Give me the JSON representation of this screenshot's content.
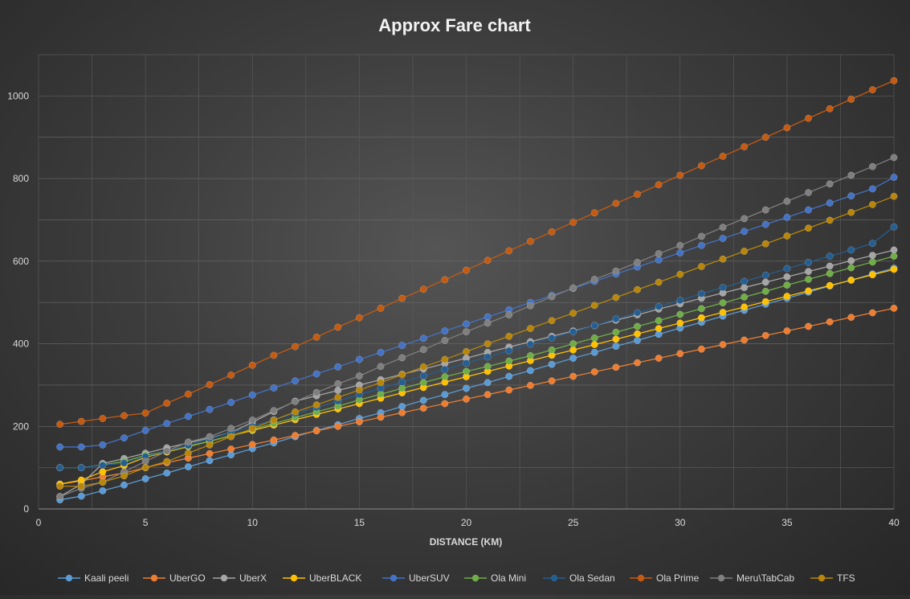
{
  "chart_data": {
    "type": "line",
    "title": "Approx Fare chart",
    "xlabel": "DISTANCE (KM)",
    "ylabel": "",
    "xlim": [
      0,
      40
    ],
    "ylim": [
      0,
      1100
    ],
    "x_ticks": [
      0,
      5,
      10,
      15,
      20,
      25,
      30,
      35,
      40
    ],
    "y_ticks": [
      0,
      200,
      400,
      600,
      800,
      1000
    ],
    "grid": true,
    "legend_position": "bottom",
    "x": [
      1,
      2,
      3,
      4,
      5,
      6,
      7,
      8,
      9,
      10,
      11,
      12,
      13,
      14,
      15,
      16,
      17,
      18,
      19,
      20,
      21,
      22,
      23,
      24,
      25,
      26,
      27,
      28,
      29,
      30,
      31,
      32,
      33,
      34,
      35,
      36,
      37,
      38,
      39,
      40
    ],
    "series": [
      {
        "name": "Kaali peeli",
        "color": "#5b9bd5",
        "values": [
          22,
          31,
          44,
          58,
          73,
          87,
          102,
          117,
          131,
          146,
          160,
          175,
          190,
          204,
          219,
          233,
          248,
          263,
          277,
          292,
          306,
          321,
          335,
          350,
          365,
          379,
          394,
          408,
          423,
          438,
          452,
          467,
          481,
          496,
          510,
          525,
          540,
          554,
          569,
          583
        ]
      },
      {
        "name": "UberGO",
        "color": "#ed7d31",
        "values": [
          60,
          68,
          78,
          87,
          100,
          112,
          123,
          134,
          145,
          156,
          167,
          178,
          189,
          200,
          211,
          222,
          233,
          244,
          255,
          266,
          277,
          288,
          299,
          310,
          321,
          332,
          343,
          354,
          365,
          376,
          387,
          398,
          409,
          420,
          431,
          442,
          453,
          464,
          475,
          486
        ]
      },
      {
        "name": "UberX",
        "color": "#a5a5a5",
        "values": [
          30,
          60,
          110,
          122,
          135,
          148,
          160,
          172,
          185,
          210,
          236,
          261,
          274,
          287,
          300,
          313,
          326,
          339,
          352,
          365,
          379,
          392,
          405,
          418,
          431,
          444,
          457,
          470,
          484,
          497,
          510,
          523,
          536,
          549,
          562,
          575,
          588,
          601,
          614,
          627
        ]
      },
      {
        "name": "UberBLACK",
        "color": "#ffc000",
        "values": [
          60,
          70,
          90,
          105,
          125,
          138,
          151,
          164,
          177,
          190,
          203,
          216,
          229,
          242,
          255,
          268,
          281,
          294,
          307,
          320,
          333,
          346,
          359,
          372,
          385,
          398,
          411,
          424,
          437,
          450,
          463,
          476,
          489,
          502,
          515,
          528,
          541,
          554,
          567,
          580
        ]
      },
      {
        "name": "UberSUV",
        "color": "#4472c4",
        "values": [
          150,
          150,
          155,
          172,
          190,
          207,
          224,
          241,
          258,
          276,
          293,
          310,
          327,
          344,
          362,
          379,
          396,
          413,
          431,
          448,
          465,
          482,
          500,
          517,
          534,
          551,
          569,
          586,
          603,
          620,
          638,
          655,
          672,
          689,
          706,
          724,
          741,
          758,
          775,
          803
        ]
      },
      {
        "name": "Ola Mini",
        "color": "#70ad47",
        "values": [
          100,
          100,
          107,
          115,
          130,
          140,
          152,
          164,
          178,
          193,
          207,
          221,
          235,
          249,
          264,
          278,
          292,
          306,
          320,
          333,
          345,
          358,
          371,
          385,
          400,
          414,
          428,
          442,
          456,
          471,
          485,
          499,
          513,
          527,
          542,
          556,
          570,
          584,
          598,
          612
        ]
      },
      {
        "name": "Ola Sedan",
        "color": "#255e91",
        "values": [
          100,
          100,
          106,
          111,
          127,
          140,
          154,
          170,
          185,
          200,
          216,
          231,
          246,
          261,
          277,
          292,
          307,
          322,
          338,
          353,
          368,
          383,
          399,
          414,
          429,
          444,
          460,
          475,
          490,
          505,
          521,
          536,
          551,
          566,
          582,
          597,
          612,
          627,
          643,
          683
        ]
      },
      {
        "name": "Ola Prime",
        "color": "#c55a11",
        "values": [
          205,
          212,
          219,
          226,
          232,
          256,
          278,
          301,
          324,
          348,
          372,
          393,
          416,
          440,
          463,
          486,
          510,
          532,
          555,
          578,
          602,
          625,
          648,
          671,
          694,
          717,
          740,
          762,
          785,
          808,
          831,
          854,
          877,
          900,
          923,
          946,
          969,
          992,
          1015,
          1037
        ]
      },
      {
        "name": "Meru\\TabCab",
        "color": "#7f7f7f",
        "values": [
          30,
          50,
          65,
          90,
          115,
          140,
          162,
          175,
          195,
          215,
          238,
          260,
          282,
          303,
          322,
          345,
          366,
          386,
          408,
          429,
          450,
          470,
          492,
          514,
          535,
          556,
          576,
          597,
          618,
          638,
          660,
          682,
          703,
          724,
          745,
          766,
          787,
          808,
          829,
          851
        ]
      },
      {
        "name": "TFS",
        "color": "#b8860b",
        "values": [
          55,
          55,
          65,
          80,
          100,
          115,
          135,
          155,
          175,
          195,
          215,
          235,
          252,
          270,
          288,
          306,
          325,
          344,
          362,
          381,
          400,
          418,
          437,
          456,
          474,
          493,
          512,
          531,
          549,
          568,
          587,
          605,
          624,
          642,
          661,
          680,
          699,
          718,
          737,
          757
        ]
      }
    ]
  }
}
